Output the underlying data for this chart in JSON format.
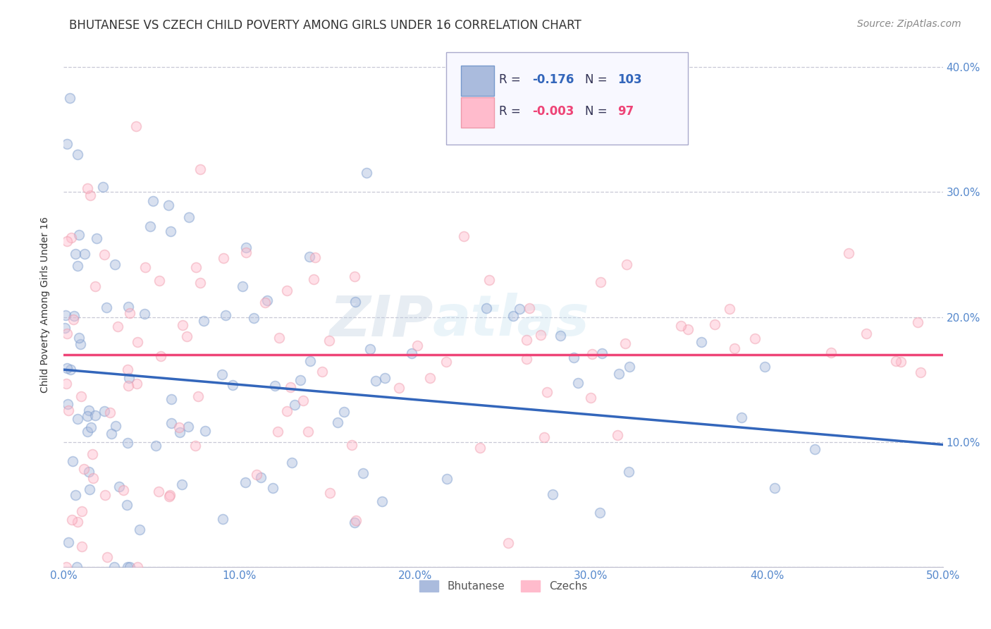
{
  "title": "BHUTANESE VS CZECH CHILD POVERTY AMONG GIRLS UNDER 16 CORRELATION CHART",
  "source": "Source: ZipAtlas.com",
  "ylabel": "Child Poverty Among Girls Under 16",
  "xlim": [
    0.0,
    0.5
  ],
  "ylim": [
    0.0,
    0.42
  ],
  "xticks": [
    0.0,
    0.1,
    0.2,
    0.3,
    0.4,
    0.5
  ],
  "yticks": [
    0.0,
    0.1,
    0.2,
    0.3,
    0.4
  ],
  "xtick_labels": [
    "0.0%",
    "10.0%",
    "20.0%",
    "30.0%",
    "40.0%",
    "50.0%"
  ],
  "ytick_labels_right": [
    "",
    "10.0%",
    "20.0%",
    "30.0%",
    "40.0%"
  ],
  "blue_color": "#AABBDD",
  "blue_edge_color": "#7799CC",
  "pink_color": "#FFBBCC",
  "pink_edge_color": "#EE99AA",
  "blue_line_color": "#3366BB",
  "pink_line_color": "#EE4477",
  "legend_blue_R": "-0.176",
  "legend_blue_N": "103",
  "legend_pink_R": "-0.003",
  "legend_pink_N": "97",
  "legend_label_blue": "Bhutanese",
  "legend_label_pink": "Czechs",
  "watermark_left": "ZIP",
  "watermark_right": "atlas",
  "background_color": "#FFFFFF",
  "grid_color": "#BBBBCC",
  "blue_label_color": "#5588CC",
  "tick_color": "#5588CC",
  "title_color": "#333333",
  "source_color": "#888888",
  "marker_size": 100,
  "marker_alpha": 0.45,
  "title_fontsize": 12,
  "axis_label_fontsize": 10,
  "tick_fontsize": 11,
  "source_fontsize": 10,
  "blue_line_start_y": 0.158,
  "blue_line_end_y": 0.098,
  "pink_line_y": 0.17
}
